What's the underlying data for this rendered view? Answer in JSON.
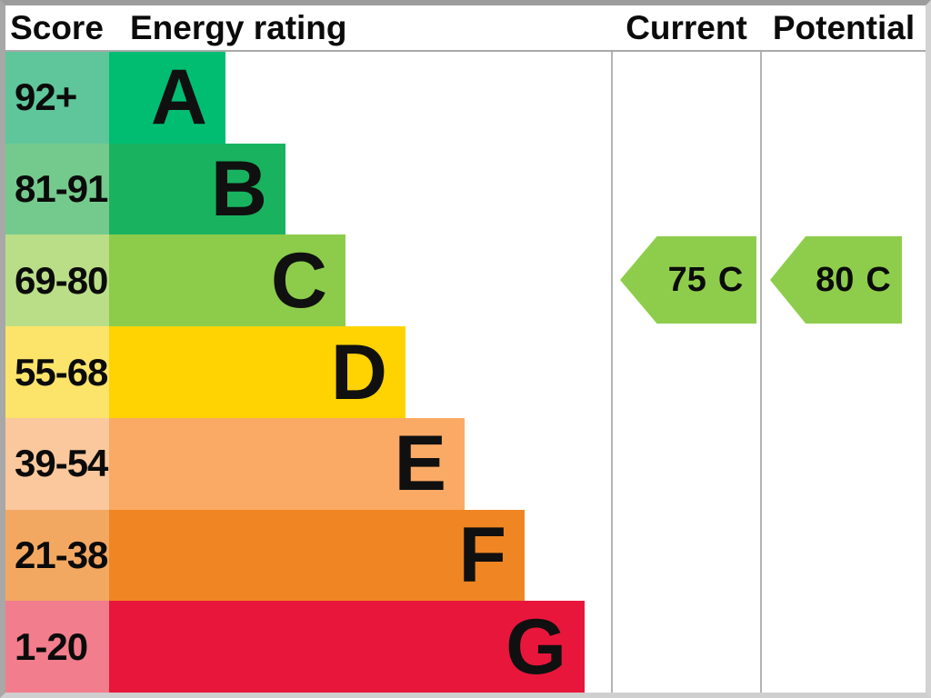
{
  "header": {
    "score": "Score",
    "energy_rating": "Energy rating",
    "current": "Current",
    "potential": "Potential"
  },
  "chart_data": {
    "type": "bar",
    "subtype": "epc_energy_rating_chart",
    "columns": [
      "Score",
      "Energy rating",
      "Current",
      "Potential"
    ],
    "bands": [
      {
        "grade": "A",
        "score_range": "92+",
        "bar_color": "#00bd72",
        "score_tint": "#5fc59b"
      },
      {
        "grade": "B",
        "score_range": "81-91",
        "bar_color": "#19b35f",
        "score_tint": "#74c98c"
      },
      {
        "grade": "C",
        "score_range": "69-80",
        "bar_color": "#8ccc4a",
        "score_tint": "#bade87"
      },
      {
        "grade": "D",
        "score_range": "55-68",
        "bar_color": "#ffd302",
        "score_tint": "#fce46a"
      },
      {
        "grade": "E",
        "score_range": "39-54",
        "bar_color": "#fbaa65",
        "score_tint": "#fac89c"
      },
      {
        "grade": "F",
        "score_range": "21-38",
        "bar_color": "#ef8623",
        "score_tint": "#f3a862"
      },
      {
        "grade": "G",
        "score_range": "1-20",
        "bar_color": "#e9163c",
        "score_tint": "#f27d8d"
      }
    ],
    "current": {
      "value": 75,
      "grade": "C",
      "arrow_color": "#8ecd4b"
    },
    "potential": {
      "value": 80,
      "grade": "C",
      "arrow_color": "#8ecd4b"
    }
  }
}
